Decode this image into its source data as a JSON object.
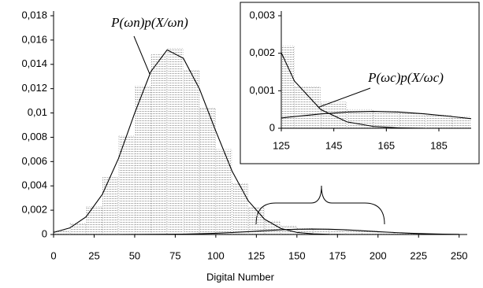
{
  "chart_data": {
    "type": "histogram",
    "x_label": "Digital Number",
    "xlim": [
      0,
      255
    ],
    "xticks": [
      0,
      25,
      50,
      75,
      100,
      125,
      150,
      175,
      200,
      225,
      250
    ],
    "ylim": [
      0,
      0.018
    ],
    "yticks": [
      0,
      {
        "value": 0.002,
        "label": "0,002"
      },
      {
        "value": 0.004,
        "label": "0,004"
      },
      {
        "value": 0.006,
        "label": "0,006"
      },
      {
        "value": 0.008,
        "label": "0,008"
      },
      {
        "value": 0.01,
        "label": "0,01"
      },
      {
        "value": 0.012,
        "label": "0,012"
      },
      {
        "value": 0.014,
        "label": "0,014"
      },
      {
        "value": 0.016,
        "label": "0,016"
      },
      {
        "value": 0.018,
        "label": "0,018"
      }
    ],
    "histogram": {
      "color": "#9a9a9a",
      "bins": [
        0,
        10,
        20,
        30,
        40,
        50,
        60,
        70,
        80,
        90,
        100,
        110,
        120,
        130,
        140,
        150,
        160,
        170,
        180,
        190,
        200,
        210,
        220,
        230,
        240,
        250
      ],
      "values": [
        0.0003,
        0.0009,
        0.0023,
        0.0047,
        0.0081,
        0.0122,
        0.0148,
        0.0153,
        0.0135,
        0.0104,
        0.007,
        0.0042,
        0.0022,
        0.0011,
        0.0007,
        0.0005,
        0.00045,
        0.0004,
        0.00035,
        0.0003,
        0.0002,
        0.00013,
        8e-05,
        4e-05,
        2e-05
      ]
    },
    "x": [
      0,
      10,
      20,
      30,
      40,
      50,
      60,
      70,
      80,
      90,
      100,
      110,
      120,
      130,
      140,
      150,
      160,
      170,
      180,
      190,
      200,
      210,
      220,
      230,
      240,
      250
    ],
    "series": [
      {
        "color": "#000000",
        "values": [
          0.00017,
          0.00054,
          0.00145,
          0.00329,
          0.00625,
          0.00999,
          0.01341,
          0.01519,
          0.0145,
          0.01196,
          0.00851,
          0.00522,
          0.00277,
          0.00126,
          0.0005,
          0.00017,
          5e-05,
          1e-05,
          0,
          0,
          0,
          0,
          0,
          0,
          0,
          0
        ]
      },
      {
        "color": "#000000",
        "values": [
          0,
          0,
          0,
          0,
          0,
          3e-06,
          1e-05,
          2e-05,
          3e-05,
          6e-05,
          0.000104,
          0.000162,
          0.000234,
          0.000312,
          0.000382,
          0.000432,
          0.00045,
          0.000432,
          0.000382,
          0.000312,
          0.000234,
          0.000162,
          0.000104,
          6.1e-05,
          3.3e-05,
          1.6e-05
        ]
      }
    ],
    "annotation": "P(ωn)p(X/ωn)",
    "inset": {
      "xlim": [
        125,
        197
      ],
      "xticks": [
        125,
        145,
        165,
        185
      ],
      "ylim": [
        0,
        0.003
      ],
      "yticks": [
        0,
        {
          "value": 0.001,
          "label": "0,001"
        },
        {
          "value": 0.002,
          "label": "0,002"
        },
        {
          "value": 0.003,
          "label": "0,003"
        }
      ],
      "annotation": "P(ωc)p(X/ωc)"
    }
  }
}
